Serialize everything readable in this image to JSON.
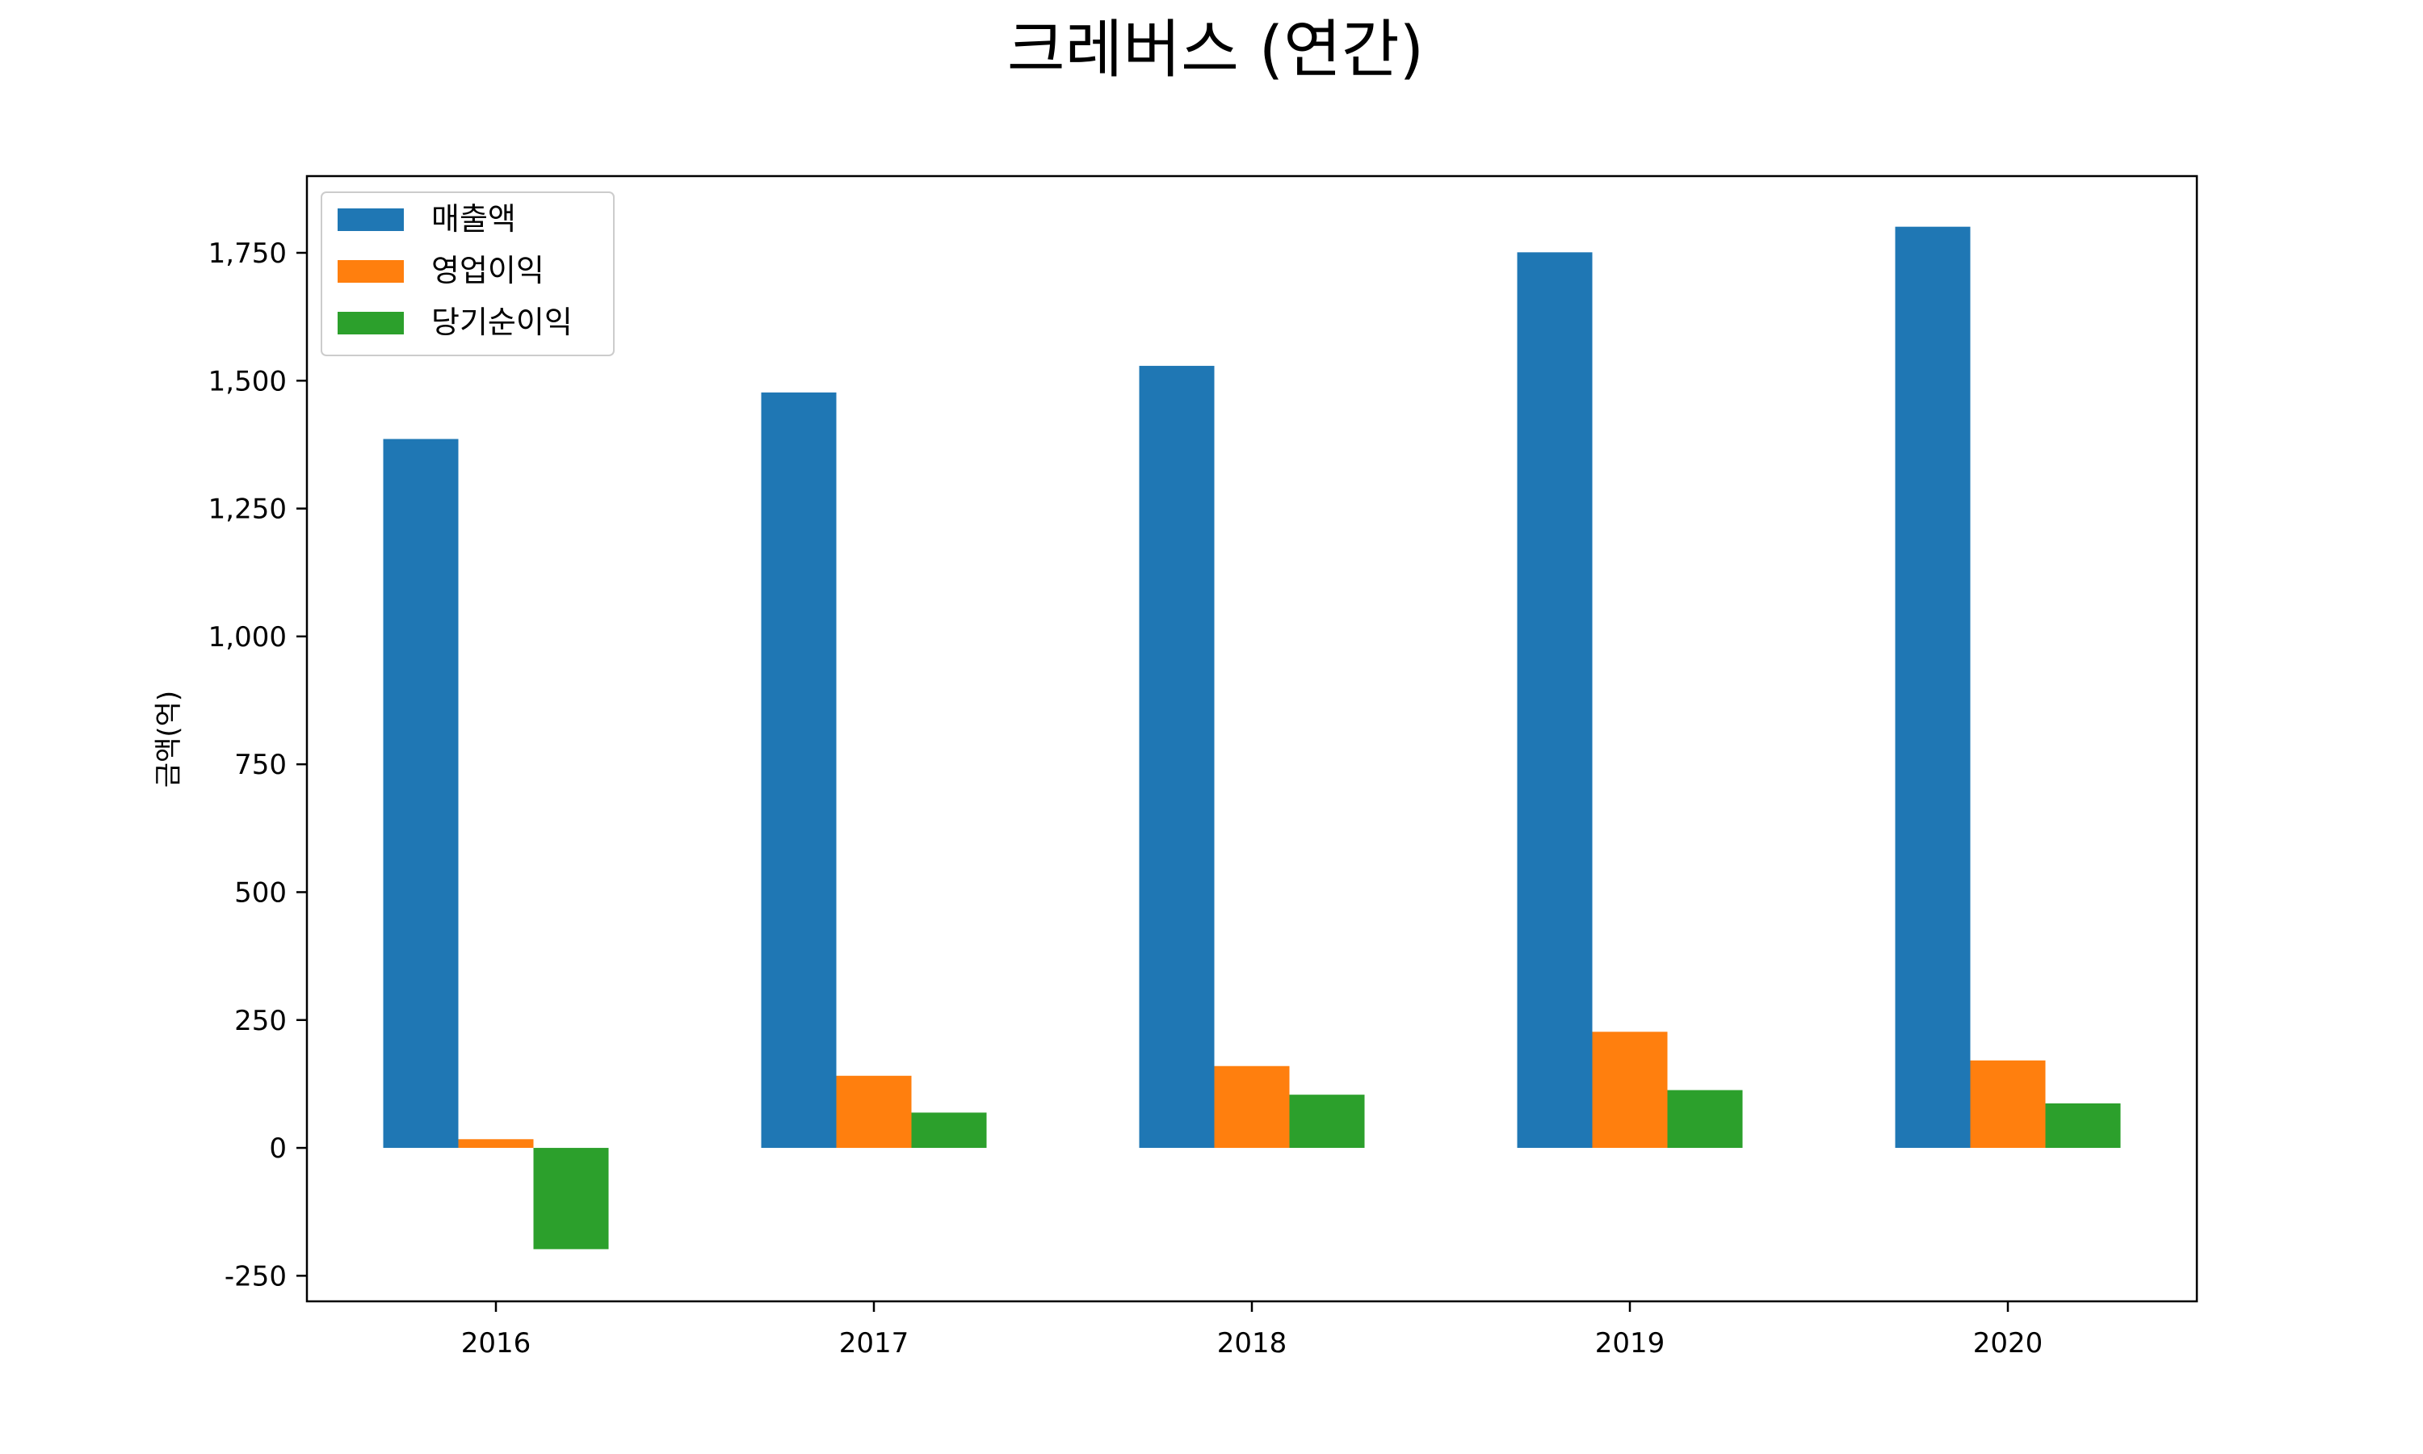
{
  "chart_data": {
    "type": "bar",
    "title": "크레버스 (연간)",
    "xlabel": "",
    "ylabel": "금액(억)",
    "categories": [
      "2016",
      "2017",
      "2018",
      "2019",
      "2020"
    ],
    "series": [
      {
        "name": "매출액",
        "color": "#1f77b4",
        "values": [
          1386,
          1477,
          1529,
          1751,
          1801
        ]
      },
      {
        "name": "영업이익",
        "color": "#ff7f0e",
        "values": [
          17,
          141,
          160,
          227,
          171
        ]
      },
      {
        "name": "당기순이익",
        "color": "#2ca02c",
        "values": [
          -198,
          69,
          104,
          113,
          87
        ]
      }
    ],
    "ylim": [
      -300,
      1900
    ],
    "yticks": [
      -250,
      0,
      250,
      500,
      750,
      1000,
      1250,
      1500,
      1750
    ],
    "ytick_labels": [
      "-250",
      "0",
      "250",
      "500",
      "750",
      "1,000",
      "1,250",
      "1,500",
      "1,750"
    ],
    "grid": false,
    "legend_position": "top-left"
  }
}
